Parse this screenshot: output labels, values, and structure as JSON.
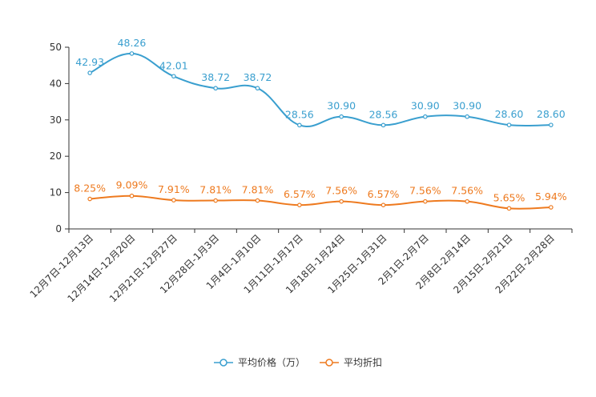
{
  "chart_data": {
    "type": "line",
    "title": "",
    "xlabel": "",
    "ylabel": "",
    "ylim": [
      0,
      50
    ],
    "yticks": [
      "0",
      "10",
      "20",
      "30",
      "40",
      "50"
    ],
    "categories": [
      "12月7日-12月13日",
      "12月14日-12月20日",
      "12月21日-12月27日",
      "12月28日-1月3日",
      "1月4日-1月10日",
      "1月11日-1月17日",
      "1月18日-1月24日",
      "1月25日-1月31日",
      "2月1日-2月7日",
      "2月8日-2月14日",
      "2月15日-2月21日",
      "2月22日-2月28日"
    ],
    "series": [
      {
        "name": "平均价格（万）",
        "color": "#3a9fcf",
        "values": [
          42.93,
          48.26,
          42.01,
          38.72,
          38.72,
          28.56,
          30.9,
          28.56,
          30.9,
          30.9,
          28.6,
          28.6
        ],
        "labels": [
          "42.93",
          "48.26",
          "42.01",
          "38.72",
          "38.72",
          "28.56",
          "30.90",
          "28.56",
          "30.90",
          "30.90",
          "28.60",
          "28.60"
        ]
      },
      {
        "name": "平均折扣",
        "color": "#ee7a1f",
        "values": [
          8.25,
          9.09,
          7.91,
          7.81,
          7.81,
          6.57,
          7.56,
          6.57,
          7.56,
          7.56,
          5.65,
          5.94
        ],
        "labels": [
          "8.25%",
          "9.09%",
          "7.91%",
          "7.81%",
          "7.81%",
          "6.57%",
          "7.56%",
          "6.57%",
          "7.56%",
          "7.56%",
          "5.65%",
          "5.94%"
        ]
      }
    ],
    "legend_position": "bottom-center",
    "grid": false
  }
}
